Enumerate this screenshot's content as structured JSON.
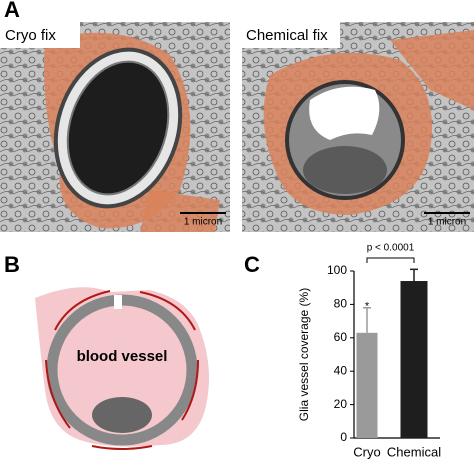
{
  "panel_labels": [
    "A",
    "B",
    "C"
  ],
  "panel_a": {
    "images": [
      {
        "label": "Cryo fix",
        "scale_bar": "1 micron"
      },
      {
        "label": "Chemical fix",
        "scale_bar": "1 micron"
      }
    ]
  },
  "panel_b": {
    "label": "blood vessel"
  },
  "chart_data": {
    "type": "bar",
    "y_label": "Glia vessel coverage (%)",
    "categories": [
      "Cryo",
      "Chemical"
    ],
    "values": [
      63,
      94
    ],
    "errors": [
      15,
      7
    ],
    "colors": [
      "#9a9a9a",
      "#1e1e1e"
    ],
    "ylim": [
      0,
      100
    ],
    "yticks": [
      0,
      20,
      40,
      60,
      80,
      100
    ],
    "annotations": {
      "significance": "p < 0.0001",
      "marker": "*"
    }
  }
}
